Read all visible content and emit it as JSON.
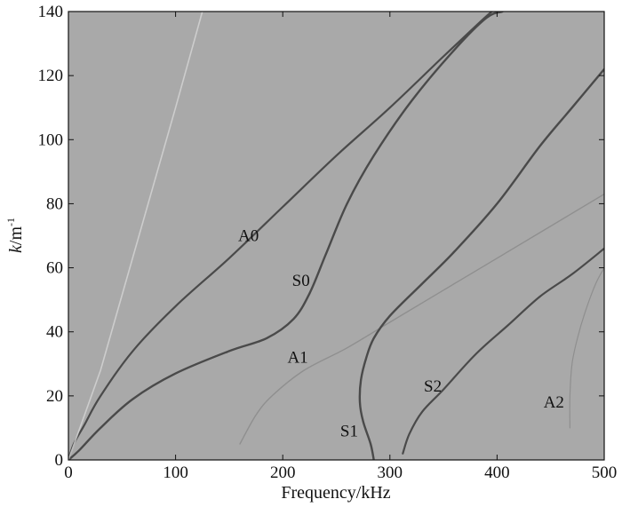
{
  "chart_data": {
    "type": "line",
    "title": "",
    "xlabel": "Frequency/kHz",
    "ylabel_parts": {
      "italic": "k",
      "unit": "/m",
      "exp": "-1"
    },
    "xlim": [
      0,
      500
    ],
    "ylim": [
      0,
      140
    ],
    "x_ticks": [
      0,
      100,
      200,
      300,
      400,
      500
    ],
    "y_ticks": [
      0,
      20,
      40,
      60,
      80,
      100,
      120,
      140
    ],
    "grid": false,
    "legend": "none",
    "background": "#a9a9a9",
    "colors": {
      "curve": "#4a4a4a",
      "faint": "#8f8f8f",
      "light": "#d6d6d6"
    },
    "series": [
      {
        "name": "A0",
        "points": [
          [
            0,
            0
          ],
          [
            5,
            5
          ],
          [
            15,
            11
          ],
          [
            30,
            20
          ],
          [
            60,
            34
          ],
          [
            100,
            48
          ],
          [
            150,
            63
          ],
          [
            200,
            79
          ],
          [
            250,
            95
          ],
          [
            300,
            110
          ],
          [
            350,
            126
          ],
          [
            385,
            137
          ],
          [
            395,
            140
          ]
        ]
      },
      {
        "name": "S0",
        "points": [
          [
            0,
            0
          ],
          [
            10,
            3
          ],
          [
            30,
            10
          ],
          [
            60,
            19
          ],
          [
            100,
            27
          ],
          [
            150,
            34
          ],
          [
            185,
            38
          ],
          [
            210,
            44
          ],
          [
            225,
            52
          ],
          [
            240,
            64
          ],
          [
            260,
            80
          ],
          [
            285,
            95
          ],
          [
            320,
            112
          ],
          [
            360,
            128
          ],
          [
            390,
            138
          ],
          [
            405,
            140
          ]
        ]
      },
      {
        "name": "A1",
        "points": [
          [
            160,
            5
          ],
          [
            175,
            14
          ],
          [
            190,
            20
          ],
          [
            220,
            28
          ],
          [
            260,
            35
          ],
          [
            300,
            43
          ],
          [
            350,
            53
          ],
          [
            400,
            63
          ],
          [
            450,
            73
          ],
          [
            500,
            83
          ]
        ]
      },
      {
        "name": "S1",
        "points": [
          [
            285,
            0
          ],
          [
            282,
            5
          ],
          [
            275,
            12
          ],
          [
            272,
            18
          ],
          [
            273,
            25
          ],
          [
            278,
            32
          ],
          [
            285,
            38
          ],
          [
            300,
            45
          ],
          [
            330,
            55
          ],
          [
            360,
            65
          ],
          [
            400,
            80
          ],
          [
            440,
            98
          ],
          [
            470,
            110
          ],
          [
            500,
            122
          ]
        ]
      },
      {
        "name": "S2",
        "points": [
          [
            312,
            2
          ],
          [
            318,
            8
          ],
          [
            330,
            15
          ],
          [
            350,
            22
          ],
          [
            380,
            33
          ],
          [
            410,
            42
          ],
          [
            440,
            51
          ],
          [
            470,
            58
          ],
          [
            500,
            66
          ]
        ]
      },
      {
        "name": "A2",
        "points": [
          [
            468,
            10
          ],
          [
            468,
            20
          ],
          [
            470,
            30
          ],
          [
            475,
            38
          ],
          [
            482,
            46
          ],
          [
            492,
            55
          ],
          [
            500,
            60
          ]
        ]
      }
    ],
    "annotations": [
      {
        "text": "A0",
        "x": 168,
        "y": 70
      },
      {
        "text": "S0",
        "x": 217,
        "y": 56
      },
      {
        "text": "A1",
        "x": 214,
        "y": 32
      },
      {
        "text": "S1",
        "x": 262,
        "y": 9
      },
      {
        "text": "S2",
        "x": 340,
        "y": 23
      },
      {
        "text": "A2",
        "x": 453,
        "y": 18
      }
    ]
  }
}
